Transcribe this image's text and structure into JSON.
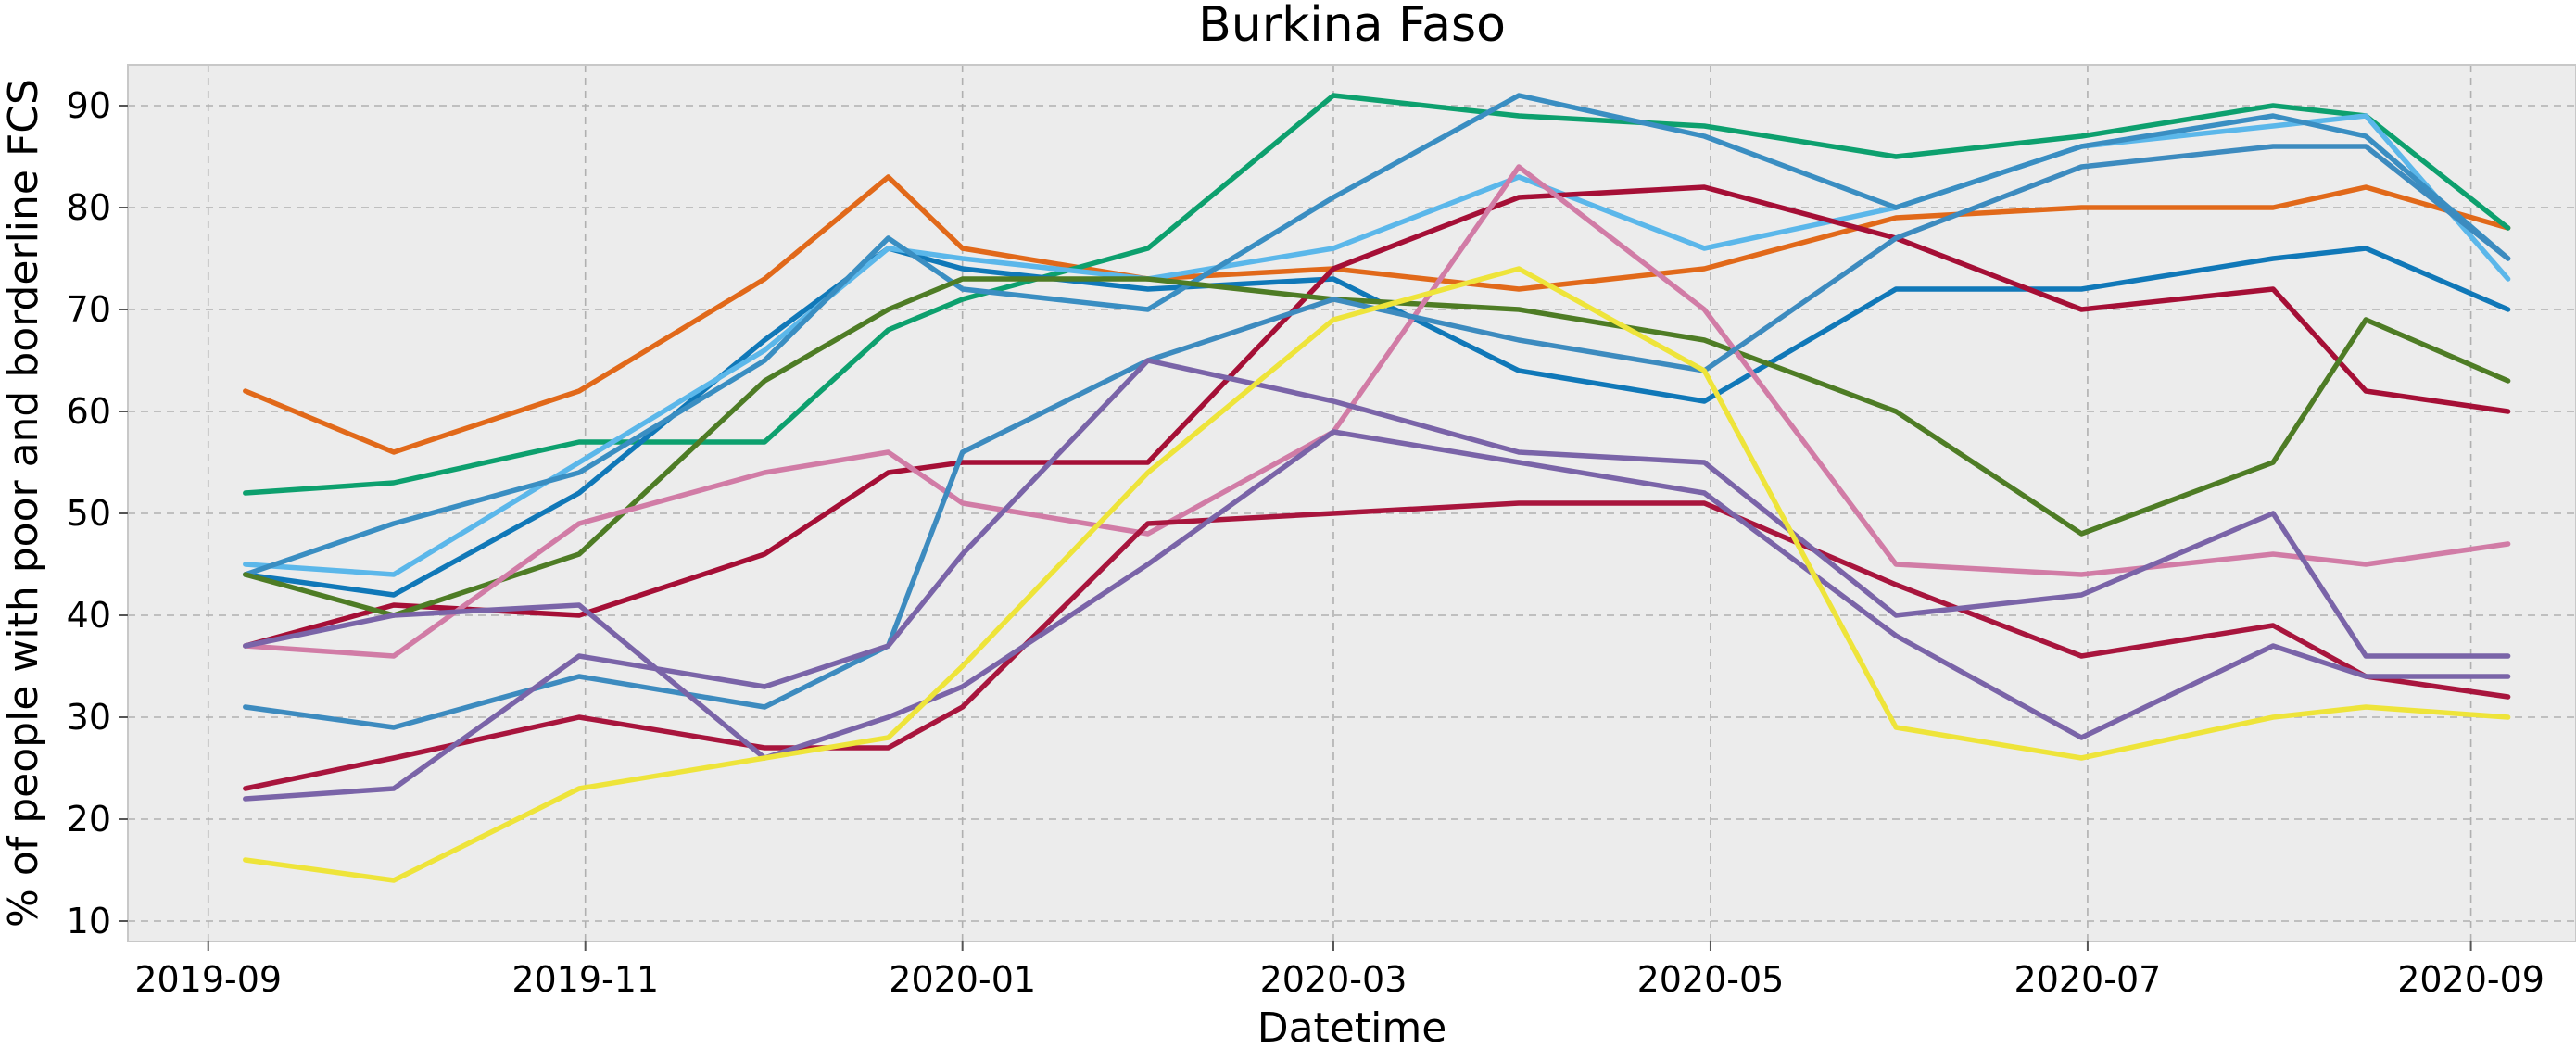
{
  "chart_data": {
    "type": "line",
    "title": "Burkina Faso",
    "xlabel": "Datetime",
    "ylabel": "% of people with poor and borderline FCS",
    "x_ticks": [
      "2019-09",
      "2019-11",
      "2020-01",
      "2020-03",
      "2020-05",
      "2020-07",
      "2020-09"
    ],
    "y_ticks": [
      "10",
      "20",
      "30",
      "40",
      "50",
      "60",
      "70",
      "80",
      "90"
    ],
    "xlim": [
      "2019-08-19",
      "2020-09-18"
    ],
    "ylim": [
      8,
      94
    ],
    "grid": true,
    "x": [
      "2019-09-07",
      "2019-10-01",
      "2019-10-31",
      "2019-11-30",
      "2019-12-20",
      "2020-01-01",
      "2020-01-31",
      "2020-03-01",
      "2020-03-31",
      "2020-04-30",
      "2020-05-31",
      "2020-06-30",
      "2020-07-31",
      "2020-08-15",
      "2020-09-07"
    ],
    "series": [
      {
        "color": "#E1691A",
        "values": [
          62,
          56,
          62,
          73,
          83,
          76,
          73,
          74,
          72,
          74,
          79,
          80,
          80,
          82,
          78
        ]
      },
      {
        "color": "#0DA06E",
        "values": [
          52,
          53,
          57,
          57,
          68,
          71,
          76,
          91,
          89,
          88,
          85,
          87,
          90,
          89,
          78
        ]
      },
      {
        "color": "#1078B8",
        "values": [
          44,
          42,
          52,
          67,
          76,
          74,
          72,
          73,
          64,
          61,
          72,
          72,
          75,
          76,
          70
        ]
      },
      {
        "color": "#5BB7EA",
        "values": [
          45,
          44,
          55,
          66,
          76,
          75,
          73,
          76,
          83,
          76,
          80,
          86,
          88,
          89,
          73
        ]
      },
      {
        "color": "#3A8EC2",
        "values": [
          44,
          49,
          54,
          65,
          77,
          72,
          70,
          81,
          91,
          87,
          80,
          86,
          89,
          87,
          75
        ]
      },
      {
        "color": "#A50F36",
        "values": [
          37,
          41,
          40,
          46,
          54,
          55,
          55,
          74,
          81,
          82,
          77,
          70,
          72,
          62,
          60
        ]
      },
      {
        "color": "#4E7C25",
        "values": [
          44,
          40,
          46,
          63,
          70,
          73,
          73,
          71,
          70,
          67,
          60,
          48,
          55,
          69,
          63
        ]
      },
      {
        "color": "#D17CA6",
        "values": [
          37,
          36,
          49,
          54,
          56,
          51,
          48,
          58,
          84,
          70,
          45,
          44,
          46,
          45,
          47
        ]
      },
      {
        "color": "#3D8BBF",
        "values": [
          31,
          29,
          34,
          31,
          37,
          56,
          65,
          71,
          67,
          64,
          77,
          84,
          86,
          86,
          75
        ]
      },
      {
        "color": "#A8153D",
        "values": [
          23,
          26,
          30,
          27,
          27,
          31,
          49,
          50,
          51,
          51,
          43,
          36,
          39,
          34,
          32
        ]
      },
      {
        "color": "#7A64A8",
        "values": [
          37,
          40,
          41,
          26,
          30,
          33,
          45,
          58,
          55,
          52,
          38,
          28,
          37,
          34,
          34
        ]
      },
      {
        "color": "#7A64A8",
        "values": [
          22,
          23,
          36,
          33,
          37,
          46,
          65,
          61,
          56,
          55,
          40,
          42,
          50,
          36,
          36
        ]
      },
      {
        "color": "#EEE43A",
        "values": [
          16,
          14,
          23,
          26,
          28,
          35,
          54,
          69,
          74,
          64,
          29,
          26,
          30,
          31,
          30
        ]
      }
    ]
  }
}
